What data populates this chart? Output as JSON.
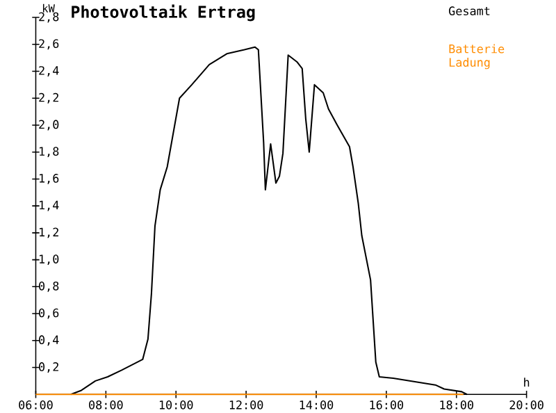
{
  "chart_data": {
    "type": "line",
    "title": "Photovoltaik Ertrag",
    "xlabel": "h",
    "ylabel": "kW",
    "xlim": [
      6,
      20
    ],
    "ylim": [
      0,
      2.8
    ],
    "xticks": [
      {
        "value": 6,
        "label": "06:00"
      },
      {
        "value": 8,
        "label": "08:00"
      },
      {
        "value": 10,
        "label": "10:00"
      },
      {
        "value": 12,
        "label": "12:00"
      },
      {
        "value": 14,
        "label": "14:00"
      },
      {
        "value": 16,
        "label": "16:00"
      },
      {
        "value": 18,
        "label": "18:00"
      },
      {
        "value": 20,
        "label": "20:00"
      }
    ],
    "yticks": [
      {
        "value": 0.2,
        "label": "0,2"
      },
      {
        "value": 0.4,
        "label": "0,4"
      },
      {
        "value": 0.6,
        "label": "0,6"
      },
      {
        "value": 0.8,
        "label": "0,8"
      },
      {
        "value": 1.0,
        "label": "1,0"
      },
      {
        "value": 1.2,
        "label": "1,2"
      },
      {
        "value": 1.4,
        "label": "1,4"
      },
      {
        "value": 1.6,
        "label": "1,6"
      },
      {
        "value": 1.8,
        "label": "1,8"
      },
      {
        "value": 2.0,
        "label": "2,0"
      },
      {
        "value": 2.2,
        "label": "2,2"
      },
      {
        "value": 2.4,
        "label": "2,4"
      },
      {
        "value": 2.6,
        "label": "2,6"
      },
      {
        "value": 2.8,
        "label": "2,8"
      }
    ],
    "legend": "top right",
    "series": [
      {
        "name": "Gesamt",
        "color": "#000000",
        "x": [
          7.0,
          7.3,
          7.7,
          8.05,
          8.45,
          9.05,
          9.2,
          9.3,
          9.4,
          9.55,
          9.75,
          10.1,
          10.45,
          10.95,
          11.45,
          11.95,
          12.25,
          12.35,
          12.5,
          12.55,
          12.7,
          12.85,
          12.95,
          13.05,
          13.2,
          13.45,
          13.6,
          13.7,
          13.8,
          13.95,
          14.2,
          14.35,
          14.6,
          14.95,
          15.05,
          15.2,
          15.3,
          15.55,
          15.7,
          15.8,
          16.2,
          17.4,
          17.65,
          18.15,
          18.3
        ],
        "values": [
          0,
          0.03,
          0.1,
          0.13,
          0.18,
          0.26,
          0.41,
          0.75,
          1.25,
          1.52,
          1.69,
          2.2,
          2.3,
          2.45,
          2.53,
          2.56,
          2.58,
          2.56,
          1.87,
          1.52,
          1.86,
          1.57,
          1.62,
          1.79,
          2.52,
          2.47,
          2.42,
          2.05,
          1.8,
          2.3,
          2.24,
          2.12,
          2.0,
          1.84,
          1.69,
          1.42,
          1.18,
          0.85,
          0.24,
          0.13,
          0.12,
          0.07,
          0.04,
          0.02,
          0
        ]
      },
      {
        "name": "Batterie Ladung",
        "color": "#ff8c00",
        "x": [
          6,
          10,
          14,
          18.2
        ],
        "values": [
          0,
          0,
          0,
          0
        ]
      }
    ]
  }
}
